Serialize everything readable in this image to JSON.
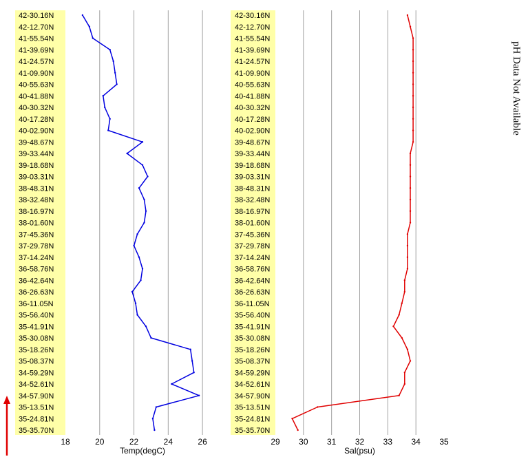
{
  "side_note": "pH Data Not Available",
  "colors": {
    "panel_bg": "#ffffa8",
    "plot_bg": "#ffffff",
    "grid": "#a0a0a0",
    "temp": "#0000e0",
    "sal": "#e00000",
    "arrow": "#e00000"
  },
  "lat_labels": [
    "42-30.16N",
    "42-12.70N",
    "41-55.54N",
    "41-39.69N",
    "41-24.57N",
    "41-09.90N",
    "40-55.63N",
    "40-41.88N",
    "40-30.32N",
    "40-17.28N",
    "40-02.90N",
    "39-48.67N",
    "39-33.44N",
    "39-18.68N",
    "39-03.31N",
    "38-48.31N",
    "38-32.48N",
    "38-16.97N",
    "38-01.60N",
    "37-45.36N",
    "37-29.78N",
    "37-14.24N",
    "36-58.76N",
    "36-42.64N",
    "36-26.63N",
    "36-11.05N",
    "35-56.40N",
    "35-41.91N",
    "35-30.08N",
    "35-18.26N",
    "35-08.37N",
    "34-59.29N",
    "34-52.61N",
    "34-57.90N",
    "35-13.51N",
    "35-24.81N",
    "35-35.70N"
  ],
  "chart_data": [
    {
      "type": "line",
      "xlabel": "Temp(degC)",
      "xlim": [
        18,
        27
      ],
      "xticks": [
        18,
        20,
        22,
        24,
        26
      ],
      "grid": true,
      "series": [
        {
          "y": [
            "42-30.16N",
            "42-12.70N",
            "41-55.54N",
            "41-39.69N",
            "41-24.57N",
            "41-09.90N",
            "40-55.63N",
            "40-41.88N",
            "40-30.32N",
            "40-17.28N",
            "40-02.90N",
            "39-48.67N",
            "39-33.44N",
            "39-18.68N",
            "39-03.31N",
            "38-48.31N",
            "38-32.48N",
            "38-16.97N",
            "38-01.60N",
            "37-45.36N",
            "37-29.78N",
            "37-14.24N",
            "36-58.76N",
            "36-42.64N",
            "36-26.63N",
            "36-11.05N",
            "35-56.40N",
            "35-41.91N",
            "35-30.08N",
            "35-18.26N",
            "35-08.37N",
            "34-59.29N",
            "34-52.61N",
            "34-57.90N",
            "35-13.51N",
            "35-24.81N",
            "35-35.70N"
          ],
          "values": [
            19.0,
            19.4,
            19.6,
            20.6,
            20.8,
            20.9,
            21.0,
            20.2,
            20.3,
            20.6,
            20.5,
            22.5,
            21.6,
            22.5,
            22.8,
            22.3,
            22.6,
            22.7,
            22.6,
            22.2,
            22.0,
            22.3,
            22.5,
            22.4,
            21.9,
            22.1,
            22.2,
            22.7,
            23.0,
            25.3,
            25.4,
            25.5,
            24.2,
            25.8,
            23.3,
            23.1,
            23.2
          ]
        }
      ]
    },
    {
      "type": "line",
      "xlabel": "Sal(psu)",
      "xlim": [
        29,
        35
      ],
      "xticks": [
        29,
        30,
        31,
        32,
        33,
        34,
        35
      ],
      "grid": true,
      "series": [
        {
          "y": [
            "42-30.16N",
            "42-12.70N",
            "41-55.54N",
            "41-39.69N",
            "41-24.57N",
            "41-09.90N",
            "40-55.63N",
            "40-41.88N",
            "40-30.32N",
            "40-17.28N",
            "40-02.90N",
            "39-48.67N",
            "39-33.44N",
            "39-18.68N",
            "39-03.31N",
            "38-48.31N",
            "38-32.48N",
            "38-16.97N",
            "38-01.60N",
            "37-45.36N",
            "37-29.78N",
            "37-14.24N",
            "36-58.76N",
            "36-42.64N",
            "36-26.63N",
            "36-11.05N",
            "35-56.40N",
            "35-41.91N",
            "35-30.08N",
            "35-18.26N",
            "35-08.37N",
            "34-59.29N",
            "34-52.61N",
            "34-57.90N",
            "35-13.51N",
            "35-24.81N",
            "35-35.70N"
          ],
          "values": [
            33.7,
            33.8,
            33.9,
            33.9,
            33.9,
            33.9,
            33.9,
            33.9,
            33.9,
            33.9,
            33.9,
            33.9,
            33.8,
            33.8,
            33.8,
            33.8,
            33.8,
            33.8,
            33.8,
            33.7,
            33.7,
            33.7,
            33.7,
            33.6,
            33.6,
            33.5,
            33.4,
            33.2,
            33.5,
            33.7,
            33.8,
            33.6,
            33.6,
            33.4,
            30.5,
            29.6,
            29.8
          ]
        }
      ]
    }
  ]
}
